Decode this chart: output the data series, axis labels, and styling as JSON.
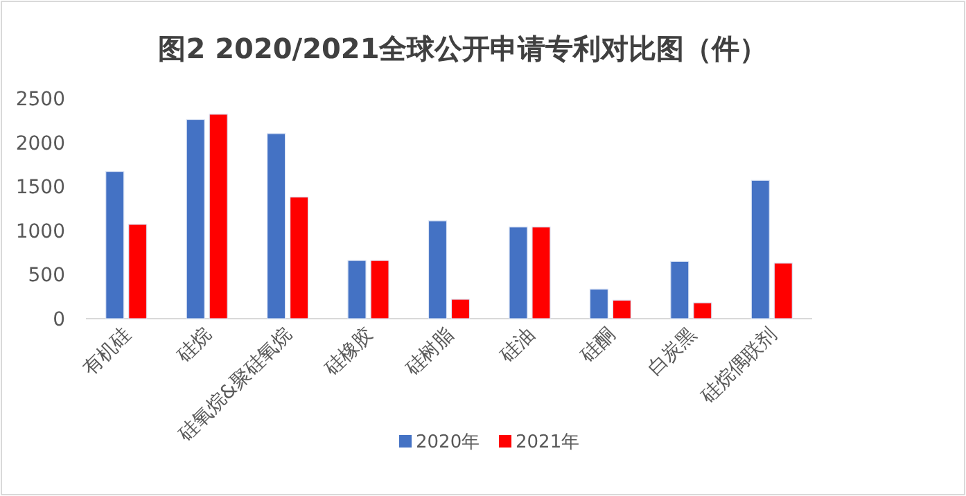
{
  "chart_data": {
    "type": "bar",
    "title": "图2  2020/2021全球公开申请专利对比图（件）",
    "categories": [
      "有机硅",
      "硅烷",
      "硅氧烷&聚硅氧烷",
      "硅橡胶",
      "硅树脂",
      "硅油",
      "硅酮",
      "白炭黑",
      "硅烷偶联剂"
    ],
    "series": [
      {
        "name": "2020年",
        "color": "#4472c4",
        "values": [
          1670,
          2260,
          2100,
          660,
          1110,
          1040,
          335,
          650,
          1570
        ]
      },
      {
        "name": "2021年",
        "color": "#ff0000",
        "values": [
          1070,
          2320,
          1380,
          660,
          220,
          1040,
          210,
          180,
          630
        ]
      }
    ],
    "ylim": [
      0,
      2500
    ],
    "yticks": [
      0,
      500,
      1000,
      1500,
      2000,
      2500
    ],
    "legend": "bottom"
  }
}
